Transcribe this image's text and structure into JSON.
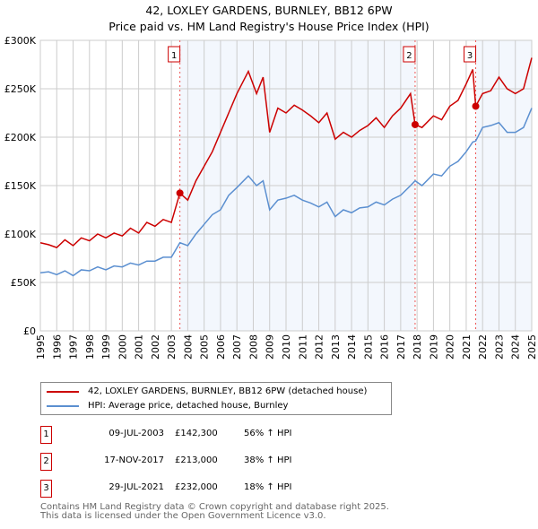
{
  "chart_data": {
    "type": "line",
    "title": "42, LOXLEY GARDENS, BURNLEY, BB12 6PW",
    "subtitle": "Price paid vs. HM Land Registry's House Price Index (HPI)",
    "xlim": [
      1995,
      2025
    ],
    "ylim": [
      0,
      300000
    ],
    "x_ticks": [
      "1995",
      "1996",
      "1997",
      "1998",
      "1999",
      "2000",
      "2001",
      "2002",
      "2003",
      "2004",
      "2005",
      "2006",
      "2007",
      "2008",
      "2009",
      "2010",
      "2011",
      "2012",
      "2013",
      "2014",
      "2015",
      "2016",
      "2017",
      "2018",
      "2019",
      "2020",
      "2021",
      "2022",
      "2023",
      "2024",
      "2025"
    ],
    "y_ticks": [
      {
        "v": 0,
        "label": "£0"
      },
      {
        "v": 50000,
        "label": "£50K"
      },
      {
        "v": 100000,
        "label": "£100K"
      },
      {
        "v": 150000,
        "label": "£150K"
      },
      {
        "v": 200000,
        "label": "£200K"
      },
      {
        "v": 250000,
        "label": "£250K"
      },
      {
        "v": 300000,
        "label": "£300K"
      }
    ],
    "grid": true,
    "series": [
      {
        "name": "42, LOXLEY GARDENS, BURNLEY, BB12 6PW (detached house)",
        "color": "#cc0000",
        "x": [
          1995,
          1995.5,
          1996,
          1996.5,
          1997,
          1997.5,
          1998,
          1998.5,
          1999,
          1999.5,
          2000,
          2000.5,
          2001,
          2001.5,
          2002,
          2002.5,
          2003,
          2003.52,
          2004,
          2004.5,
          2005,
          2005.5,
          2006,
          2006.5,
          2007,
          2007.7,
          2008.2,
          2008.6,
          2009,
          2009.5,
          2010,
          2010.5,
          2011,
          2011.5,
          2012,
          2012.5,
          2013,
          2013.5,
          2014,
          2014.5,
          2015,
          2015.5,
          2016,
          2016.5,
          2017,
          2017.6,
          2017.88,
          2018.3,
          2019,
          2019.5,
          2020,
          2020.5,
          2021,
          2021.4,
          2021.58,
          2022,
          2022.5,
          2023,
          2023.5,
          2024,
          2024.5,
          2025
        ],
        "y": [
          91000,
          89000,
          86000,
          94000,
          88000,
          96000,
          93000,
          100000,
          96000,
          101000,
          98000,
          106000,
          101000,
          112000,
          108000,
          115000,
          112000,
          142300,
          135000,
          155000,
          170000,
          185000,
          205000,
          225000,
          245000,
          268000,
          245000,
          262000,
          205000,
          230000,
          225000,
          233000,
          228000,
          222000,
          215000,
          225000,
          198000,
          205000,
          200000,
          207000,
          212000,
          220000,
          210000,
          222000,
          230000,
          245000,
          213000,
          210000,
          222000,
          218000,
          232000,
          238000,
          255000,
          270000,
          232000,
          245000,
          248000,
          262000,
          250000,
          245000,
          250000,
          282000
        ]
      },
      {
        "name": "HPI: Average price, detached house, Burnley",
        "color": "#5b8fd0",
        "x": [
          1995,
          1995.5,
          1996,
          1996.5,
          1997,
          1997.5,
          1998,
          1998.5,
          1999,
          1999.5,
          2000,
          2000.5,
          2001,
          2001.5,
          2002,
          2002.5,
          2003,
          2003.52,
          2004,
          2004.5,
          2005,
          2005.5,
          2006,
          2006.5,
          2007,
          2007.7,
          2008.2,
          2008.6,
          2009,
          2009.5,
          2010,
          2010.5,
          2011,
          2011.5,
          2012,
          2012.5,
          2013,
          2013.5,
          2014,
          2014.5,
          2015,
          2015.5,
          2016,
          2016.5,
          2017,
          2017.6,
          2017.88,
          2018.3,
          2019,
          2019.5,
          2020,
          2020.5,
          2021,
          2021.4,
          2021.58,
          2022,
          2022.5,
          2023,
          2023.5,
          2024,
          2024.5,
          2025
        ],
        "y": [
          60000,
          61000,
          58000,
          62000,
          57000,
          63000,
          62000,
          66000,
          63000,
          67000,
          66000,
          70000,
          68000,
          72000,
          72000,
          76000,
          76000,
          91000,
          88000,
          100000,
          110000,
          120000,
          125000,
          140000,
          148000,
          160000,
          150000,
          155000,
          125000,
          135000,
          137000,
          140000,
          135000,
          132000,
          128000,
          133000,
          118000,
          125000,
          122000,
          127000,
          128000,
          133000,
          130000,
          136000,
          140000,
          150000,
          155000,
          150000,
          162000,
          160000,
          170000,
          175000,
          185000,
          195000,
          196000,
          210000,
          212000,
          215000,
          205000,
          205000,
          210000,
          230000
        ]
      }
    ],
    "sales": [
      {
        "n": "1",
        "x": 2003.52,
        "y": 142300
      },
      {
        "n": "2",
        "x": 2017.88,
        "y": 213000
      },
      {
        "n": "3",
        "x": 2021.58,
        "y": 232000
      }
    ]
  },
  "legend": {
    "red": "42, LOXLEY GARDENS, BURNLEY, BB12 6PW (detached house)",
    "blue": "HPI: Average price, detached house, Burnley"
  },
  "transactions": [
    {
      "n": "1",
      "date": "09-JUL-2003",
      "price": "£142,300",
      "hpi": "56% ↑ HPI"
    },
    {
      "n": "2",
      "date": "17-NOV-2017",
      "price": "£213,000",
      "hpi": "38% ↑ HPI"
    },
    {
      "n": "3",
      "date": "29-JUL-2021",
      "price": "£232,000",
      "hpi": "18% ↑ HPI"
    }
  ],
  "footer": {
    "line1": "Contains HM Land Registry data © Crown copyright and database right 2025.",
    "line2": "This data is licensed under the Open Government Licence v3.0."
  }
}
